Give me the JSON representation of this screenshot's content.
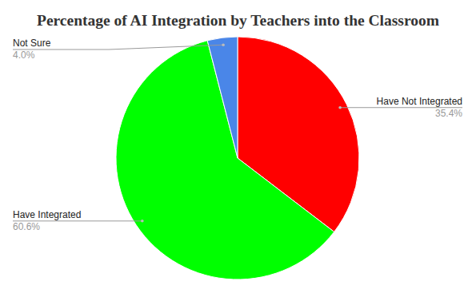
{
  "chart_data": {
    "type": "pie",
    "title": "Percentage of AI Integration by Teachers into the Classroom",
    "categories": [
      "Have Not Integrated",
      "Have Integrated",
      "Not Sure"
    ],
    "values": [
      35.4,
      60.6,
      4.0
    ],
    "value_labels": [
      "35.4%",
      "60.6%",
      "4.0%"
    ],
    "colors": [
      "#ff0000",
      "#00ff00",
      "#4a86e8"
    ],
    "data_labels": true
  }
}
